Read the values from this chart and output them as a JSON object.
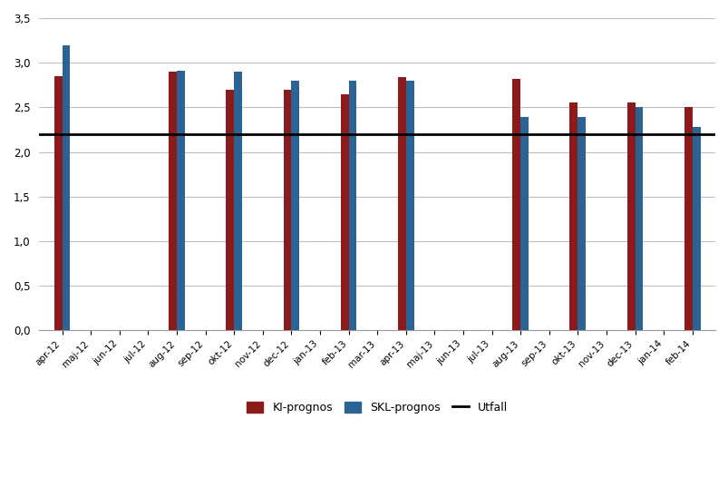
{
  "categories": [
    "apr-12",
    "maj-12",
    "jun-12",
    "jul-12",
    "aug-12",
    "sep-12",
    "okt-12",
    "nov-12",
    "dec-12",
    "jan-13",
    "feb-13",
    "mar-13",
    "apr-13",
    "maj-13",
    "jun-13",
    "jul-13",
    "aug-13",
    "sep-13",
    "okt-13",
    "nov-13",
    "dec-13",
    "jan-14",
    "feb-14"
  ],
  "bar_positions": [
    0,
    4,
    6,
    8,
    10,
    12,
    16,
    18,
    20,
    22
  ],
  "ki_values": [
    2.85,
    2.9,
    2.7,
    2.7,
    2.65,
    2.84,
    2.82,
    2.55,
    2.55,
    2.5
  ],
  "skl_values": [
    3.19,
    2.91,
    2.9,
    2.8,
    2.8,
    2.8,
    2.39,
    2.39,
    2.5,
    2.28
  ],
  "utfall": 2.2,
  "ki_color": "#8B1A1A",
  "skl_color": "#2B6494",
  "utfall_color": "#000000",
  "ylim": [
    0.0,
    3.5
  ],
  "yticks": [
    0.0,
    0.5,
    1.0,
    1.5,
    2.0,
    2.5,
    3.0,
    3.5
  ],
  "background_color": "#FFFFFF",
  "grid_color": "#BEBEBE",
  "legend_ki": "KI-prognos",
  "legend_skl": "SKL-prognos",
  "legend_utfall": "Utfall"
}
